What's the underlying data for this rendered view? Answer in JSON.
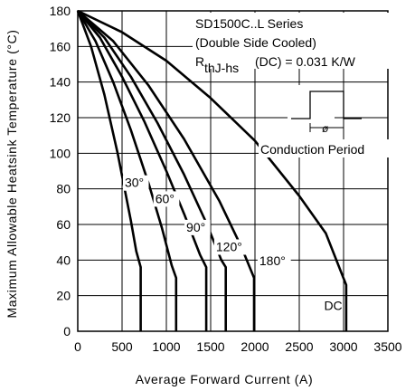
{
  "chart_data": {
    "type": "line",
    "xlabel": "Average Forward Current (A)",
    "ylabel": "Maximum Allowable Heatsink Temperature (°C)",
    "xlim": [
      0,
      3500
    ],
    "ylim": [
      0,
      180
    ],
    "xticks": [
      0,
      500,
      1000,
      1500,
      2000,
      2500,
      3000,
      3500
    ],
    "yticks": [
      0,
      20,
      40,
      60,
      80,
      100,
      120,
      140,
      160,
      180
    ],
    "grid": true,
    "annotations": {
      "line1": "SD1500C..L Series",
      "line2": "(Double Side Cooled)",
      "rth_prefix": "R",
      "rth_sub": "thJ-hs",
      "rth_suffix": "(DC) = 0.031 K/W",
      "conduction_label": "Conduction Period",
      "phi": "ø"
    },
    "series": [
      {
        "name": "30°",
        "x": [
          0,
          150,
          300,
          450,
          600,
          660,
          710,
          710
        ],
        "y": [
          180,
          160,
          133,
          100,
          62,
          45,
          36,
          0
        ]
      },
      {
        "name": "60°",
        "x": [
          0,
          200,
          400,
          600,
          800,
          950,
          1060,
          1110,
          1110
        ],
        "y": [
          180,
          163,
          140,
          113,
          83,
          58,
          37,
          30,
          0
        ]
      },
      {
        "name": "90°",
        "x": [
          0,
          250,
          500,
          750,
          1000,
          1200,
          1380,
          1450,
          1450
        ],
        "y": [
          180,
          165,
          143,
          118,
          90,
          66,
          43,
          36,
          0
        ]
      },
      {
        "name": "120°",
        "x": [
          0,
          300,
          600,
          900,
          1200,
          1450,
          1620,
          1670,
          1670
        ],
        "y": [
          180,
          165,
          143,
          117,
          88,
          61,
          40,
          36,
          0
        ]
      },
      {
        "name": "180°",
        "x": [
          0,
          400,
          800,
          1200,
          1600,
          1850,
          1990,
          1990
        ],
        "y": [
          180,
          163,
          138,
          108,
          73,
          47,
          30,
          0
        ]
      },
      {
        "name": "DC",
        "x": [
          0,
          500,
          1000,
          1500,
          2000,
          2500,
          2800,
          3030,
          3030
        ],
        "y": [
          180,
          168,
          152,
          131,
          107,
          76,
          55,
          26,
          0
        ]
      }
    ],
    "curve_labels": [
      {
        "text": "30°",
        "x": 530,
        "y": 81
      },
      {
        "text": "60°",
        "x": 875,
        "y": 72
      },
      {
        "text": "90°",
        "x": 1225,
        "y": 56
      },
      {
        "text": "120°",
        "x": 1560,
        "y": 45
      },
      {
        "text": "180°",
        "x": 2050,
        "y": 37
      },
      {
        "text": "DC",
        "x": 2780,
        "y": 12
      }
    ]
  }
}
